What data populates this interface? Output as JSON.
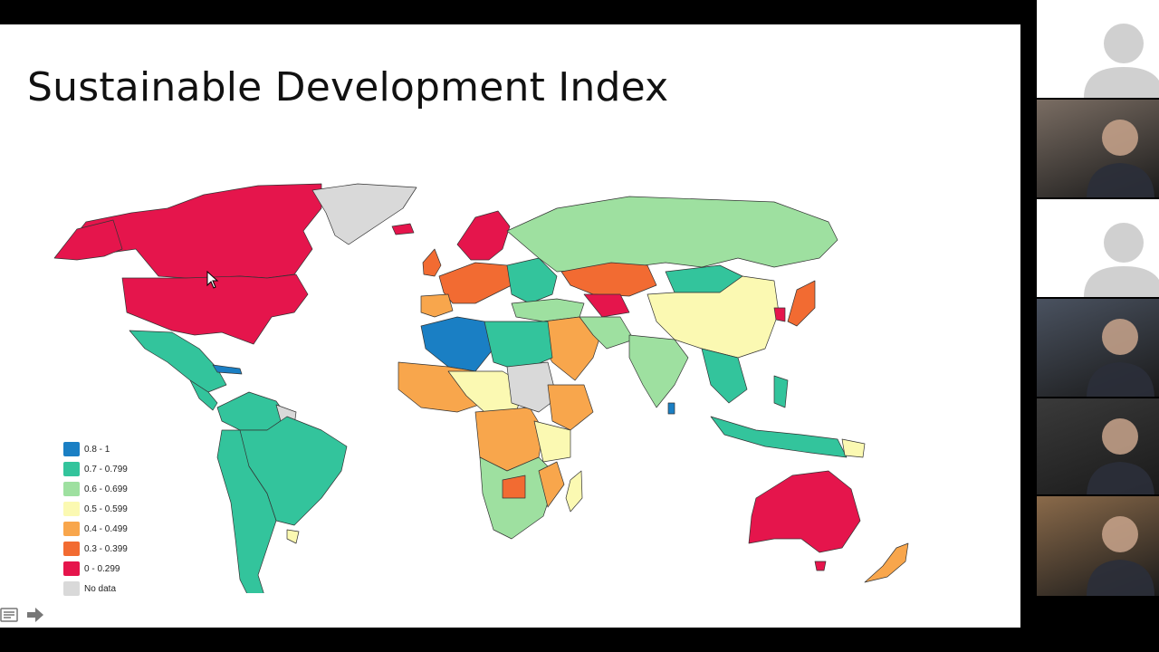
{
  "slide": {
    "title": "Sustainable Development Index"
  },
  "legend": {
    "items": [
      {
        "label": "0.8 - 1",
        "color": "#1a7fc4"
      },
      {
        "label": "0.7 - 0.799",
        "color": "#33c49c"
      },
      {
        "label": "0.6 - 0.699",
        "color": "#9ee0a0"
      },
      {
        "label": "0.5 - 0.599",
        "color": "#fbf9b2"
      },
      {
        "label": "0.4 - 0.499",
        "color": "#f8a64c"
      },
      {
        "label": "0.3 - 0.399",
        "color": "#f26b32"
      },
      {
        "label": "0 - 0.299",
        "color": "#e5154c"
      },
      {
        "label": "No data",
        "color": "#d9d9d9"
      }
    ]
  },
  "map": {
    "border_color": "#333333",
    "ocean_color": "#ffffff"
  },
  "participants": {
    "tiles": [
      {
        "kind": "avatar-placeholder"
      },
      {
        "kind": "video",
        "tone": "#7a6d63"
      },
      {
        "kind": "avatar-placeholder"
      },
      {
        "kind": "video",
        "tone": "#4a5260"
      },
      {
        "kind": "video",
        "tone": "#3a3a3a"
      },
      {
        "kind": "video",
        "tone": "#8a6a4a"
      }
    ]
  },
  "controls": {
    "icons": [
      "notes-icon",
      "next-arrow-icon"
    ]
  }
}
